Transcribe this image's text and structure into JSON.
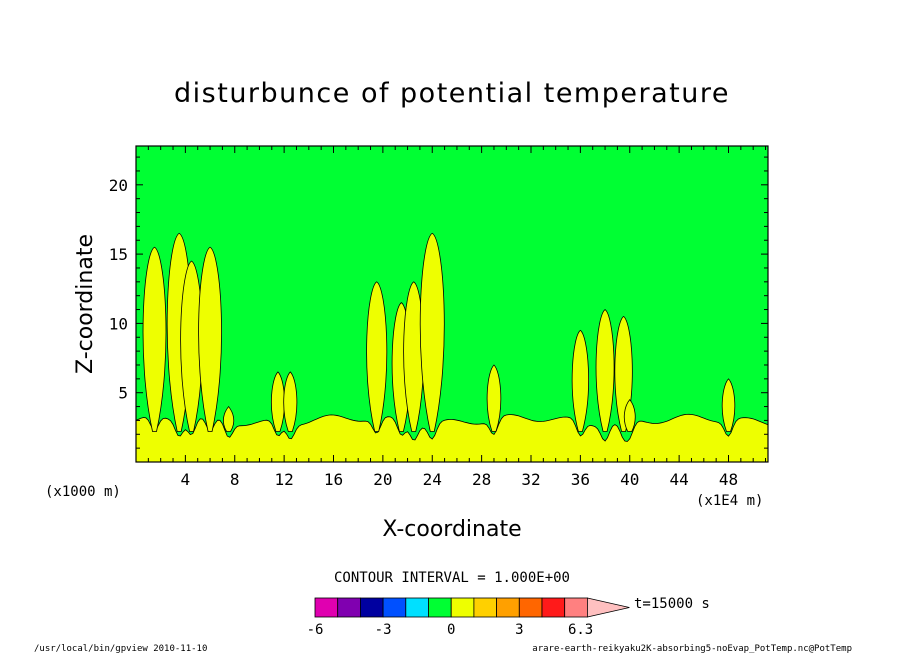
{
  "chart_data": {
    "type": "heatmap",
    "title": "disturbunce of potential temperature",
    "xlabel": "X-coordinate",
    "ylabel": "Z-coordinate",
    "x_unit_label": "(x1E4 m)",
    "y_unit_label": "(x1000 m)",
    "xlim": [
      0,
      51.2
    ],
    "ylim": [
      0,
      22.8
    ],
    "x_ticks": [
      "4",
      "8",
      "12",
      "16",
      "20",
      "24",
      "28",
      "32",
      "36",
      "40",
      "44",
      "48"
    ],
    "y_ticks": [
      "5",
      "10",
      "15",
      "20"
    ],
    "background_level": 0,
    "cold_pool_top_z": 3,
    "surface_layer_level": 1,
    "thermals": [
      {
        "x": 1.5,
        "z_top": 15.5,
        "level": 1
      },
      {
        "x": 3.5,
        "z_top": 16.5,
        "level": 1
      },
      {
        "x": 4.5,
        "z_top": 14.5,
        "level": 1
      },
      {
        "x": 6.0,
        "z_top": 15.5,
        "level": 1
      },
      {
        "x": 7.5,
        "z_top": 4.0,
        "level": 1
      },
      {
        "x": 11.5,
        "z_top": 6.5,
        "level": 1
      },
      {
        "x": 12.5,
        "z_top": 6.5,
        "level": 1
      },
      {
        "x": 19.5,
        "z_top": 13.0,
        "level": 1
      },
      {
        "x": 21.5,
        "z_top": 11.5,
        "level": 1
      },
      {
        "x": 22.5,
        "z_top": 13.0,
        "level": 1
      },
      {
        "x": 24.0,
        "z_top": 16.5,
        "level": 1
      },
      {
        "x": 29.0,
        "z_top": 7.0,
        "level": 1
      },
      {
        "x": 36.0,
        "z_top": 9.5,
        "level": 1
      },
      {
        "x": 38.0,
        "z_top": 11.0,
        "level": 1
      },
      {
        "x": 39.5,
        "z_top": 10.5,
        "level": 1
      },
      {
        "x": 40.0,
        "z_top": 4.5,
        "level": 1
      },
      {
        "x": 48.0,
        "z_top": 6.0,
        "level": 1
      }
    ]
  },
  "contour_interval_label": "CONTOUR INTERVAL = 1.000E+00",
  "colorbar": {
    "colors": [
      "#e000b0",
      "#8000b0",
      "#0000a0",
      "#0050ff",
      "#00e0ff",
      "#00ff33",
      "#eeff00",
      "#ffd000",
      "#ffa000",
      "#ff6600",
      "#ff1a1a",
      "#ff8080",
      "#ffc0c0"
    ],
    "tick_labels": [
      "-6",
      "-3",
      "0",
      "3",
      "6.3"
    ],
    "time_label": "t=15000 s"
  },
  "colors": {
    "zero_level": "#00ff33",
    "level_1": "#eeff00",
    "frame": "#000000"
  },
  "footer": {
    "left": "/usr/local/bin/gpview   2010-11-10",
    "right": "arare-earth-reikyaku2K-absorbing5-noEvap_PotTemp.nc@PotTemp"
  }
}
